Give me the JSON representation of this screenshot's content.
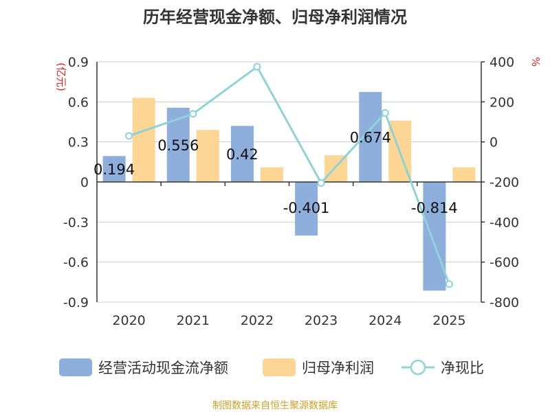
{
  "chart_data": {
    "type": "bar",
    "title": "历年经营现金净额、归母净利润情况",
    "categories": [
      "2020",
      "2021",
      "2022",
      "2023",
      "2024",
      "2025"
    ],
    "left_axis": {
      "unit": "(亿元)",
      "ylim": [
        -0.9,
        0.9
      ],
      "ticks": [
        "0.9",
        "0.6",
        "0.3",
        "0",
        "-0.3",
        "-0.6",
        "-0.9"
      ]
    },
    "right_axis": {
      "unit": "%",
      "ylim": [
        -800,
        400
      ],
      "ticks": [
        "400",
        "200",
        "0",
        "-200",
        "-400",
        "-600",
        "-800"
      ]
    },
    "series": [
      {
        "name": "经营活动现金流净额",
        "type": "bar",
        "axis": "left",
        "color": "#8eaedc",
        "values": [
          0.194,
          0.556,
          0.42,
          -0.401,
          0.674,
          -0.814
        ],
        "labels": [
          "0.194",
          "0.556",
          "0.42",
          "-0.401",
          "0.674",
          "-0.814"
        ]
      },
      {
        "name": "归母净利润",
        "type": "bar",
        "axis": "left",
        "color": "#fdd594",
        "values": [
          0.63,
          0.39,
          0.11,
          0.2,
          0.46,
          0.11
        ]
      },
      {
        "name": "净现比",
        "type": "line",
        "axis": "right",
        "color": "#8dd3d8",
        "values": [
          30,
          140,
          375,
          -205,
          145,
          -710
        ]
      }
    ],
    "grid": true,
    "legend": "bottom"
  },
  "source": "制图数据来自恒生聚源数据库"
}
